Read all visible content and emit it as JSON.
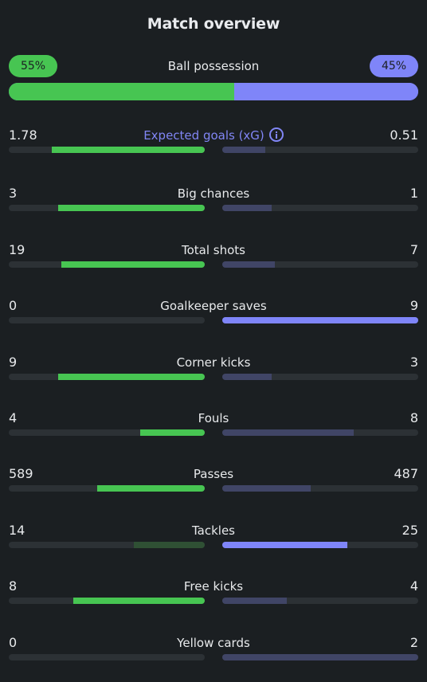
{
  "title": "Match overview",
  "possession": {
    "label": "Ball possession",
    "home": "55%",
    "away": "45%",
    "home_value": 55,
    "away_value": 45,
    "home_color": "#47c552",
    "away_color": "#7f85f9"
  },
  "info_icon": "info-icon",
  "stats": [
    {
      "label": "Expected goals (xG)",
      "home": "1.78",
      "away": "0.51",
      "home_ratio": 0.78,
      "away_ratio": 0.22,
      "highlight": "home",
      "accent": true,
      "icon": true
    },
    {
      "label": "Big chances",
      "home": "3",
      "away": "1",
      "home_ratio": 0.75,
      "away_ratio": 0.25,
      "highlight": "home"
    },
    {
      "label": "Total shots",
      "home": "19",
      "away": "7",
      "home_ratio": 0.73,
      "away_ratio": 0.27,
      "highlight": "home"
    },
    {
      "label": "Goalkeeper saves",
      "home": "0",
      "away": "9",
      "home_ratio": 0.0,
      "away_ratio": 1.0,
      "highlight": "away"
    },
    {
      "label": "Corner kicks",
      "home": "9",
      "away": "3",
      "home_ratio": 0.75,
      "away_ratio": 0.25,
      "highlight": "home"
    },
    {
      "label": "Fouls",
      "home": "4",
      "away": "8",
      "home_ratio": 0.33,
      "away_ratio": 0.67,
      "highlight": "home"
    },
    {
      "label": "Passes",
      "home": "589",
      "away": "487",
      "home_ratio": 0.55,
      "away_ratio": 0.45,
      "highlight": "home"
    },
    {
      "label": "Tackles",
      "home": "14",
      "away": "25",
      "home_ratio": 0.36,
      "away_ratio": 0.64,
      "highlight": "away"
    },
    {
      "label": "Free kicks",
      "home": "8",
      "away": "4",
      "home_ratio": 0.67,
      "away_ratio": 0.33,
      "highlight": "home"
    },
    {
      "label": "Yellow cards",
      "home": "0",
      "away": "2",
      "home_ratio": 0.0,
      "away_ratio": 1.0,
      "highlight": "none"
    }
  ]
}
